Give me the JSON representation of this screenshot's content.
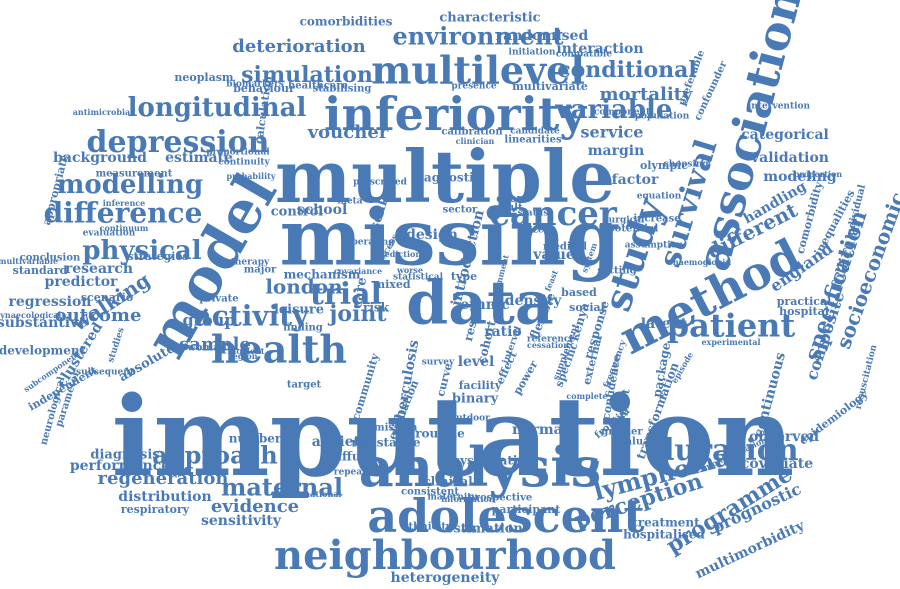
{
  "cloud": {
    "color": "#4a7ab5",
    "background": "#ffffff",
    "words": [
      "imputation",
      "missing",
      "multiple",
      "data",
      "model",
      "analysis",
      "adolescent",
      "neighbourhood",
      "inferiority",
      "multilevel",
      "association",
      "method",
      "patient",
      "duration",
      "health",
      "study",
      "survival",
      "cancer",
      "depression",
      "physical",
      "modelling",
      "difference",
      "longitudinal",
      "environment",
      "deterioration",
      "simulation",
      "activity",
      "trial",
      "joint",
      "approach",
      "maternal",
      "lymphoma",
      "perception",
      "programme",
      "specification",
      "socioeconomic",
      "variable",
      "conditional",
      "mortality",
      "voucher",
      "london",
      "walking",
      "sample",
      "outcome",
      "background",
      "estimate",
      "research",
      "predictor",
      "regression",
      "substantive",
      "development",
      "clustered",
      "absolute",
      "independent",
      "diagnosis",
      "performance",
      "regeneration",
      "distribution",
      "respiratory",
      "evidence",
      "sensitivity",
      "heterogeneity",
      "anxiety",
      "diffuse",
      "clinical",
      "estimation",
      "normal",
      "routine",
      "covariate",
      "observed",
      "treatment",
      "hospitalised",
      "multimorbidity",
      "prognostic",
      "epidemiology",
      "composite",
      "continuous",
      "latent",
      "package",
      "england",
      "follicular",
      "different",
      "handling",
      "modeling",
      "validation",
      "categorical",
      "interaction",
      "randomised",
      "characteristic",
      "comorbidities",
      "service",
      "margin",
      "olympic",
      "factor",
      "design",
      "school",
      "control",
      "scale",
      "care",
      "risk",
      "ratio",
      "level",
      "cohort",
      "result",
      "ethnic",
      "density",
      "flexible",
      "kenya",
      "response",
      "introduction",
      "diagnostic",
      "tuberculosis",
      "community",
      "calculation",
      "neoplasm",
      "behaviour",
      "healthcare",
      "stabilising",
      "multivariate",
      "biomarkers",
      "antimicrobial",
      "measurement",
      "appropriate",
      "conclusion",
      "standard",
      "strategies",
      "continuum",
      "inference",
      "evaluation",
      "scenario",
      "studies",
      "private",
      "group",
      "major",
      "leisure",
      "mechanism",
      "therapy",
      "number",
      "woman",
      "incident",
      "resistance",
      "admission",
      "elicitation",
      "systematic",
      "consistent",
      "maternity",
      "prospective",
      "participant",
      "ethnicity",
      "evaluate",
      "greater",
      "frontier",
      "impact",
      "confidence",
      "transformation",
      "implementation",
      "intervention",
      "resuscitation",
      "comorbidity",
      "inequalities",
      "individual",
      "practical",
      "hospital",
      "setting",
      "increase",
      "potential",
      "assumption",
      "linearities",
      "preferable",
      "confounder",
      "component",
      "population",
      "compatible",
      "initiation",
      "presence",
      "candidate",
      "calibration",
      "clinician",
      "proportional",
      "continuity",
      "probability",
      "choosing",
      "proportion",
      "equation",
      "surgical",
      "medical",
      "value",
      "social",
      "based",
      "event",
      "adult",
      "sector",
      "status",
      "size",
      "type",
      "mixed",
      "finding",
      "target",
      "binary",
      "facility",
      "outdoor",
      "survey",
      "curve",
      "effect",
      "power",
      "specific",
      "external",
      "repeated",
      "international",
      "information",
      "gynaecological",
      "neurological",
      "parameter",
      "subsequent",
      "subcomponent",
      "multivariable",
      "feast",
      "episode",
      "experimental",
      "haemoglobin",
      "covariance",
      "prescribed",
      "meta",
      "excess",
      "operating",
      "region",
      "system",
      "reference",
      "cessation",
      "supplement",
      "government",
      "prediction",
      "statistical",
      "complete",
      "frequency",
      "worse",
      "interval",
      "infection",
      "ischaemic",
      "person",
      "analysed",
      "exposure"
    ]
  }
}
